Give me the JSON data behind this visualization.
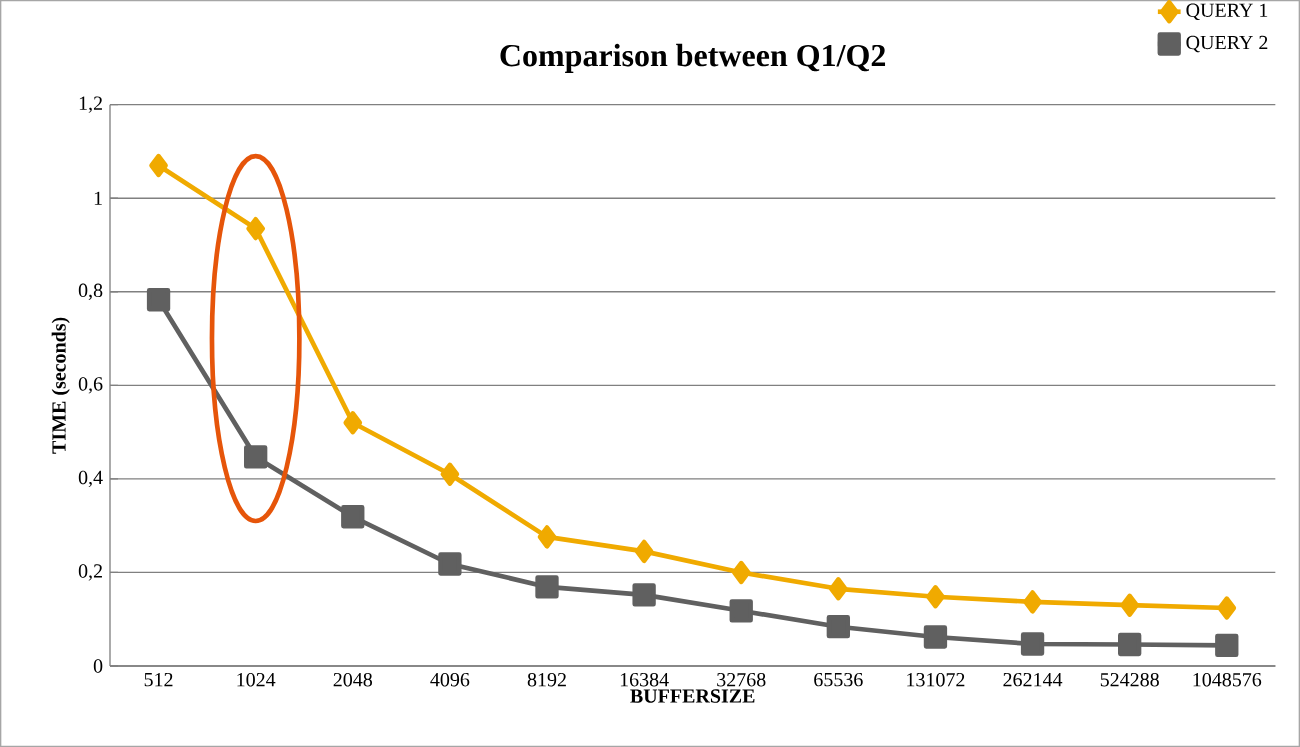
{
  "chart_data": {
    "type": "line",
    "title": "Comparison between Q1/Q2",
    "xlabel": "BUFFERSIZE",
    "ylabel": "TIME (seconds)",
    "categories": [
      "512",
      "1024",
      "2048",
      "4096",
      "8192",
      "16384",
      "32768",
      "65536",
      "131072",
      "262144",
      "524288",
      "1048576"
    ],
    "series": [
      {
        "name": "QUERY 1",
        "color": "#f0aa00",
        "marker": "diamond",
        "values": [
          1.07,
          0.935,
          0.52,
          0.41,
          0.276,
          0.245,
          0.2,
          0.165,
          0.148,
          0.137,
          0.13,
          0.124
        ]
      },
      {
        "name": "QUERY 2",
        "color": "#606060",
        "marker": "square",
        "values": [
          0.783,
          0.447,
          0.319,
          0.218,
          0.169,
          0.152,
          0.118,
          0.084,
          0.062,
          0.047,
          0.046,
          0.044
        ]
      }
    ],
    "ylim": [
      0,
      1.2
    ],
    "yticks": [
      0,
      {
        "value": 0.2,
        "label": "0,2"
      },
      {
        "value": 0.4,
        "label": "0,4"
      },
      {
        "value": 0.6,
        "label": "0,6"
      },
      {
        "value": 0.8,
        "label": "0,8"
      },
      1,
      {
        "value": 1.2,
        "label": "1,2"
      }
    ],
    "grid": "y",
    "legend": "top right",
    "line_style": "solid"
  }
}
